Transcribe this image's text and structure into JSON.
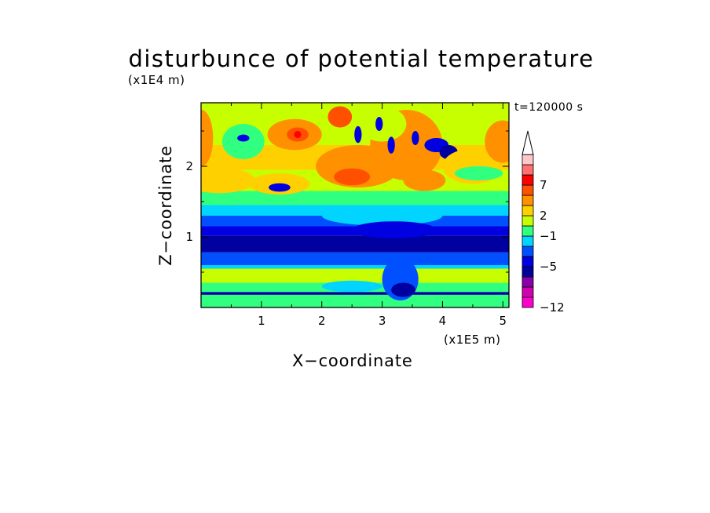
{
  "chart_data": {
    "type": "heatmap",
    "title": "disturbunce of potential temperature",
    "xlabel": "X−coordinate",
    "ylabel": "Z−coordinate",
    "x_unit": "(x1E5 m)",
    "y_unit": "(x1E4 m)",
    "time_label": "t=120000 s",
    "xlim": [
      0,
      5.1
    ],
    "ylim": [
      0,
      2.9
    ],
    "x_ticks": [
      "1",
      "2",
      "3",
      "4",
      "5"
    ],
    "y_ticks": [
      "1",
      "2"
    ],
    "colorbar": {
      "colors": [
        "#ff00cc",
        "#d100b0",
        "#8a00a8",
        "#0000a0",
        "#0000e0",
        "#0050ff",
        "#00d4ff",
        "#30ff80",
        "#c8ff00",
        "#ffd000",
        "#ff9000",
        "#ff5000",
        "#ff0000",
        "#ff7070",
        "#ffc8c8"
      ],
      "labels": [
        {
          "text": "7",
          "boundary": 12
        },
        {
          "text": "2",
          "boundary": 9
        },
        {
          "text": "−1",
          "boundary": 7
        },
        {
          "text": "−5",
          "boundary": 4
        },
        {
          "text": "−12",
          "boundary": 0
        }
      ],
      "extend": "max"
    },
    "field_bands": [
      {
        "z": [
          0.0,
          0.18
        ],
        "level": 7
      },
      {
        "z": [
          0.18,
          0.22
        ],
        "level": 3
      },
      {
        "z": [
          0.22,
          0.35
        ],
        "level": 7
      },
      {
        "z": [
          0.35,
          0.55
        ],
        "level": 8
      },
      {
        "z": [
          0.55,
          0.6
        ],
        "level": 6
      },
      {
        "z": [
          0.6,
          0.78
        ],
        "level": 5
      },
      {
        "z": [
          0.78,
          1.02
        ],
        "level": 3
      },
      {
        "z": [
          1.02,
          1.15
        ],
        "level": 4
      },
      {
        "z": [
          1.15,
          1.3
        ],
        "level": 5
      },
      {
        "z": [
          1.3,
          1.45
        ],
        "level": 6
      },
      {
        "z": [
          1.45,
          1.65
        ],
        "level": 7
      },
      {
        "z": [
          1.65,
          1.95
        ],
        "level": 8
      },
      {
        "z": [
          1.95,
          2.3
        ],
        "level": 9
      },
      {
        "z": [
          2.3,
          2.9
        ],
        "level": 8
      }
    ],
    "field_features": [
      {
        "x": 1.55,
        "z": 2.45,
        "rx": 0.45,
        "rz": 0.22,
        "level": 10
      },
      {
        "x": 1.6,
        "z": 2.45,
        "rx": 0.18,
        "rz": 0.1,
        "level": 11
      },
      {
        "x": 1.6,
        "z": 2.45,
        "rx": 0.06,
        "rz": 0.05,
        "level": 12
      },
      {
        "x": 0.7,
        "z": 2.35,
        "rx": 0.35,
        "rz": 0.25,
        "level": 7
      },
      {
        "x": 0.7,
        "z": 2.4,
        "rx": 0.1,
        "rz": 0.05,
        "level": 4
      },
      {
        "x": 0.3,
        "z": 1.8,
        "rx": 0.6,
        "rz": 0.18,
        "level": 9
      },
      {
        "x": 1.3,
        "z": 1.75,
        "rx": 0.5,
        "rz": 0.15,
        "level": 9
      },
      {
        "x": 0.0,
        "z": 2.4,
        "rx": 0.2,
        "rz": 0.4,
        "level": 10
      },
      {
        "x": 1.3,
        "z": 1.7,
        "rx": 0.18,
        "rz": 0.06,
        "level": 4
      },
      {
        "x": 2.6,
        "z": 2.0,
        "rx": 0.7,
        "rz": 0.3,
        "level": 10
      },
      {
        "x": 2.5,
        "z": 1.85,
        "rx": 0.3,
        "rz": 0.12,
        "level": 11
      },
      {
        "x": 3.4,
        "z": 2.3,
        "rx": 0.6,
        "rz": 0.5,
        "level": 10
      },
      {
        "x": 3.0,
        "z": 2.6,
        "rx": 0.4,
        "rz": 0.25,
        "level": 8
      },
      {
        "x": 2.3,
        "z": 2.7,
        "rx": 0.2,
        "rz": 0.15,
        "level": 11
      },
      {
        "x": 3.9,
        "z": 2.3,
        "rx": 0.2,
        "rz": 0.1,
        "level": 4
      },
      {
        "x": 4.1,
        "z": 2.2,
        "rx": 0.15,
        "rz": 0.1,
        "level": 3
      },
      {
        "x": 2.6,
        "z": 2.45,
        "rx": 0.06,
        "rz": 0.12,
        "level": 4
      },
      {
        "x": 2.95,
        "z": 2.6,
        "rx": 0.06,
        "rz": 0.1,
        "level": 4
      },
      {
        "x": 3.15,
        "z": 2.3,
        "rx": 0.06,
        "rz": 0.12,
        "level": 4
      },
      {
        "x": 3.55,
        "z": 2.4,
        "rx": 0.06,
        "rz": 0.1,
        "level": 4
      },
      {
        "x": 3.7,
        "z": 1.8,
        "rx": 0.35,
        "rz": 0.15,
        "level": 10
      },
      {
        "x": 4.5,
        "z": 2.0,
        "rx": 0.5,
        "rz": 0.25,
        "level": 9
      },
      {
        "x": 5.0,
        "z": 2.35,
        "rx": 0.3,
        "rz": 0.3,
        "level": 10
      },
      {
        "x": 4.6,
        "z": 1.9,
        "rx": 0.4,
        "rz": 0.1,
        "level": 7
      },
      {
        "x": 3.0,
        "z": 1.3,
        "rx": 1.0,
        "rz": 0.14,
        "level": 6
      },
      {
        "x": 3.2,
        "z": 1.1,
        "rx": 0.7,
        "rz": 0.12,
        "level": 4
      },
      {
        "x": 3.3,
        "z": 0.4,
        "rx": 0.3,
        "rz": 0.3,
        "level": 5
      },
      {
        "x": 3.35,
        "z": 0.25,
        "rx": 0.2,
        "rz": 0.1,
        "level": 3
      },
      {
        "x": 2.0,
        "z": 0.45,
        "rx": 0.35,
        "rz": 0.08,
        "level": 8
      },
      {
        "x": 1.2,
        "z": 0.45,
        "rx": 0.3,
        "rz": 0.08,
        "level": 8
      },
      {
        "x": 4.3,
        "z": 0.45,
        "rx": 0.4,
        "rz": 0.08,
        "level": 8
      },
      {
        "x": 0.2,
        "z": 0.45,
        "rx": 0.25,
        "rz": 0.08,
        "level": 8
      },
      {
        "x": 2.5,
        "z": 0.3,
        "rx": 0.5,
        "rz": 0.08,
        "level": 6
      }
    ]
  }
}
